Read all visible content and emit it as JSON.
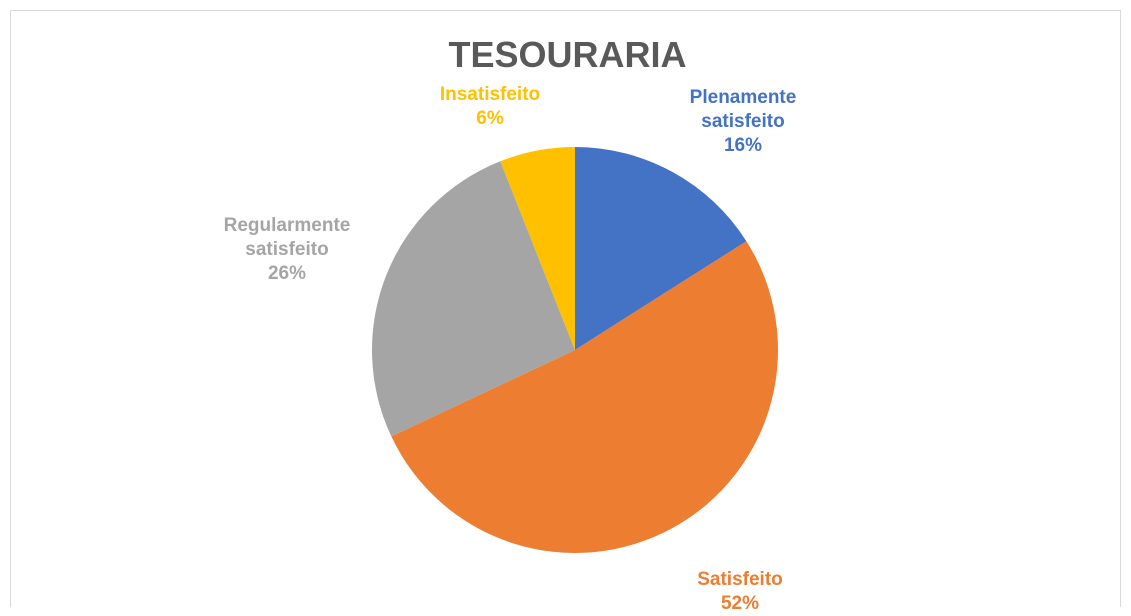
{
  "chart_data": {
    "type": "pie",
    "title": "TESOURARIA",
    "categories": [
      "Plenamente satisfeito",
      "Satisfeito",
      "Regularmente satisfeito",
      "Insatisfeito"
    ],
    "values": [
      16,
      52,
      26,
      6
    ],
    "value_labels": [
      "16%",
      "52%",
      "26%",
      "6%"
    ],
    "colors": [
      "#4472c4",
      "#ed7d31",
      "#a5a5a5",
      "#ffc000"
    ]
  }
}
